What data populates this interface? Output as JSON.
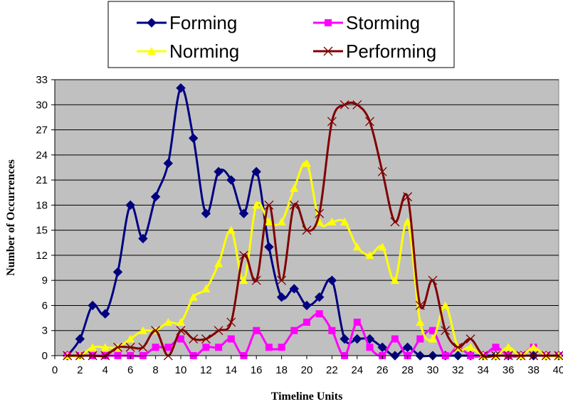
{
  "chart_data": {
    "type": "line",
    "xlabel": "Timeline Units",
    "ylabel": "Number of Occurrences",
    "xlim": [
      0,
      40
    ],
    "ylim": [
      0,
      33
    ],
    "xticks": [
      0,
      2,
      4,
      6,
      8,
      10,
      12,
      14,
      16,
      18,
      20,
      22,
      24,
      26,
      28,
      30,
      32,
      34,
      36,
      38,
      40
    ],
    "yticks": [
      0,
      3,
      6,
      9,
      12,
      15,
      18,
      21,
      24,
      27,
      30,
      33
    ],
    "grid": "horizontal",
    "legend_position": "top",
    "plot_background": "#c0c0c0",
    "x": [
      1,
      2,
      3,
      4,
      5,
      6,
      7,
      8,
      9,
      10,
      11,
      12,
      13,
      14,
      15,
      16,
      17,
      18,
      19,
      20,
      21,
      22,
      23,
      24,
      25,
      26,
      27,
      28,
      29,
      30,
      31,
      32,
      33,
      34,
      35,
      36,
      37,
      38,
      39,
      40
    ],
    "series": [
      {
        "name": "Forming",
        "color": "#000080",
        "marker": "diamond",
        "values": [
          0,
          2,
          6,
          5,
          10,
          18,
          14,
          19,
          23,
          32,
          26,
          17,
          22,
          21,
          17,
          22,
          13,
          7,
          8,
          6,
          7,
          9,
          2,
          2,
          2,
          1,
          0,
          1,
          0,
          0,
          0,
          0,
          0,
          0,
          0,
          0,
          0,
          0,
          0,
          0
        ]
      },
      {
        "name": "Storming",
        "color": "#ff00ff",
        "marker": "square",
        "values": [
          0,
          0,
          0,
          0,
          0,
          0,
          0,
          1,
          1,
          2,
          0,
          1,
          1,
          2,
          0,
          3,
          1,
          1,
          3,
          4,
          5,
          3,
          0,
          4,
          1,
          0,
          2,
          0,
          2,
          3,
          0,
          1,
          0,
          0,
          1,
          0,
          0,
          1,
          0,
          0
        ]
      },
      {
        "name": "Norming",
        "color": "#ffff00",
        "marker": "triangle",
        "values": [
          0,
          0,
          1,
          1,
          1,
          2,
          3,
          3,
          4,
          4,
          7,
          8,
          11,
          15,
          9,
          18,
          16,
          16,
          20,
          23,
          16,
          16,
          16,
          13,
          12,
          13,
          9,
          16,
          4,
          2,
          6,
          1,
          1,
          0,
          0,
          1,
          0,
          1,
          0,
          0
        ]
      },
      {
        "name": "Performing",
        "color": "#800000",
        "marker": "x",
        "values": [
          0,
          0,
          0,
          0,
          1,
          1,
          1,
          3,
          0,
          3,
          2,
          2,
          3,
          4,
          12,
          9,
          18,
          9,
          18,
          15,
          17,
          28,
          30,
          30,
          28,
          22,
          16,
          19,
          6,
          9,
          3,
          1,
          2,
          0,
          0,
          0,
          0,
          0,
          0,
          0
        ]
      }
    ]
  }
}
